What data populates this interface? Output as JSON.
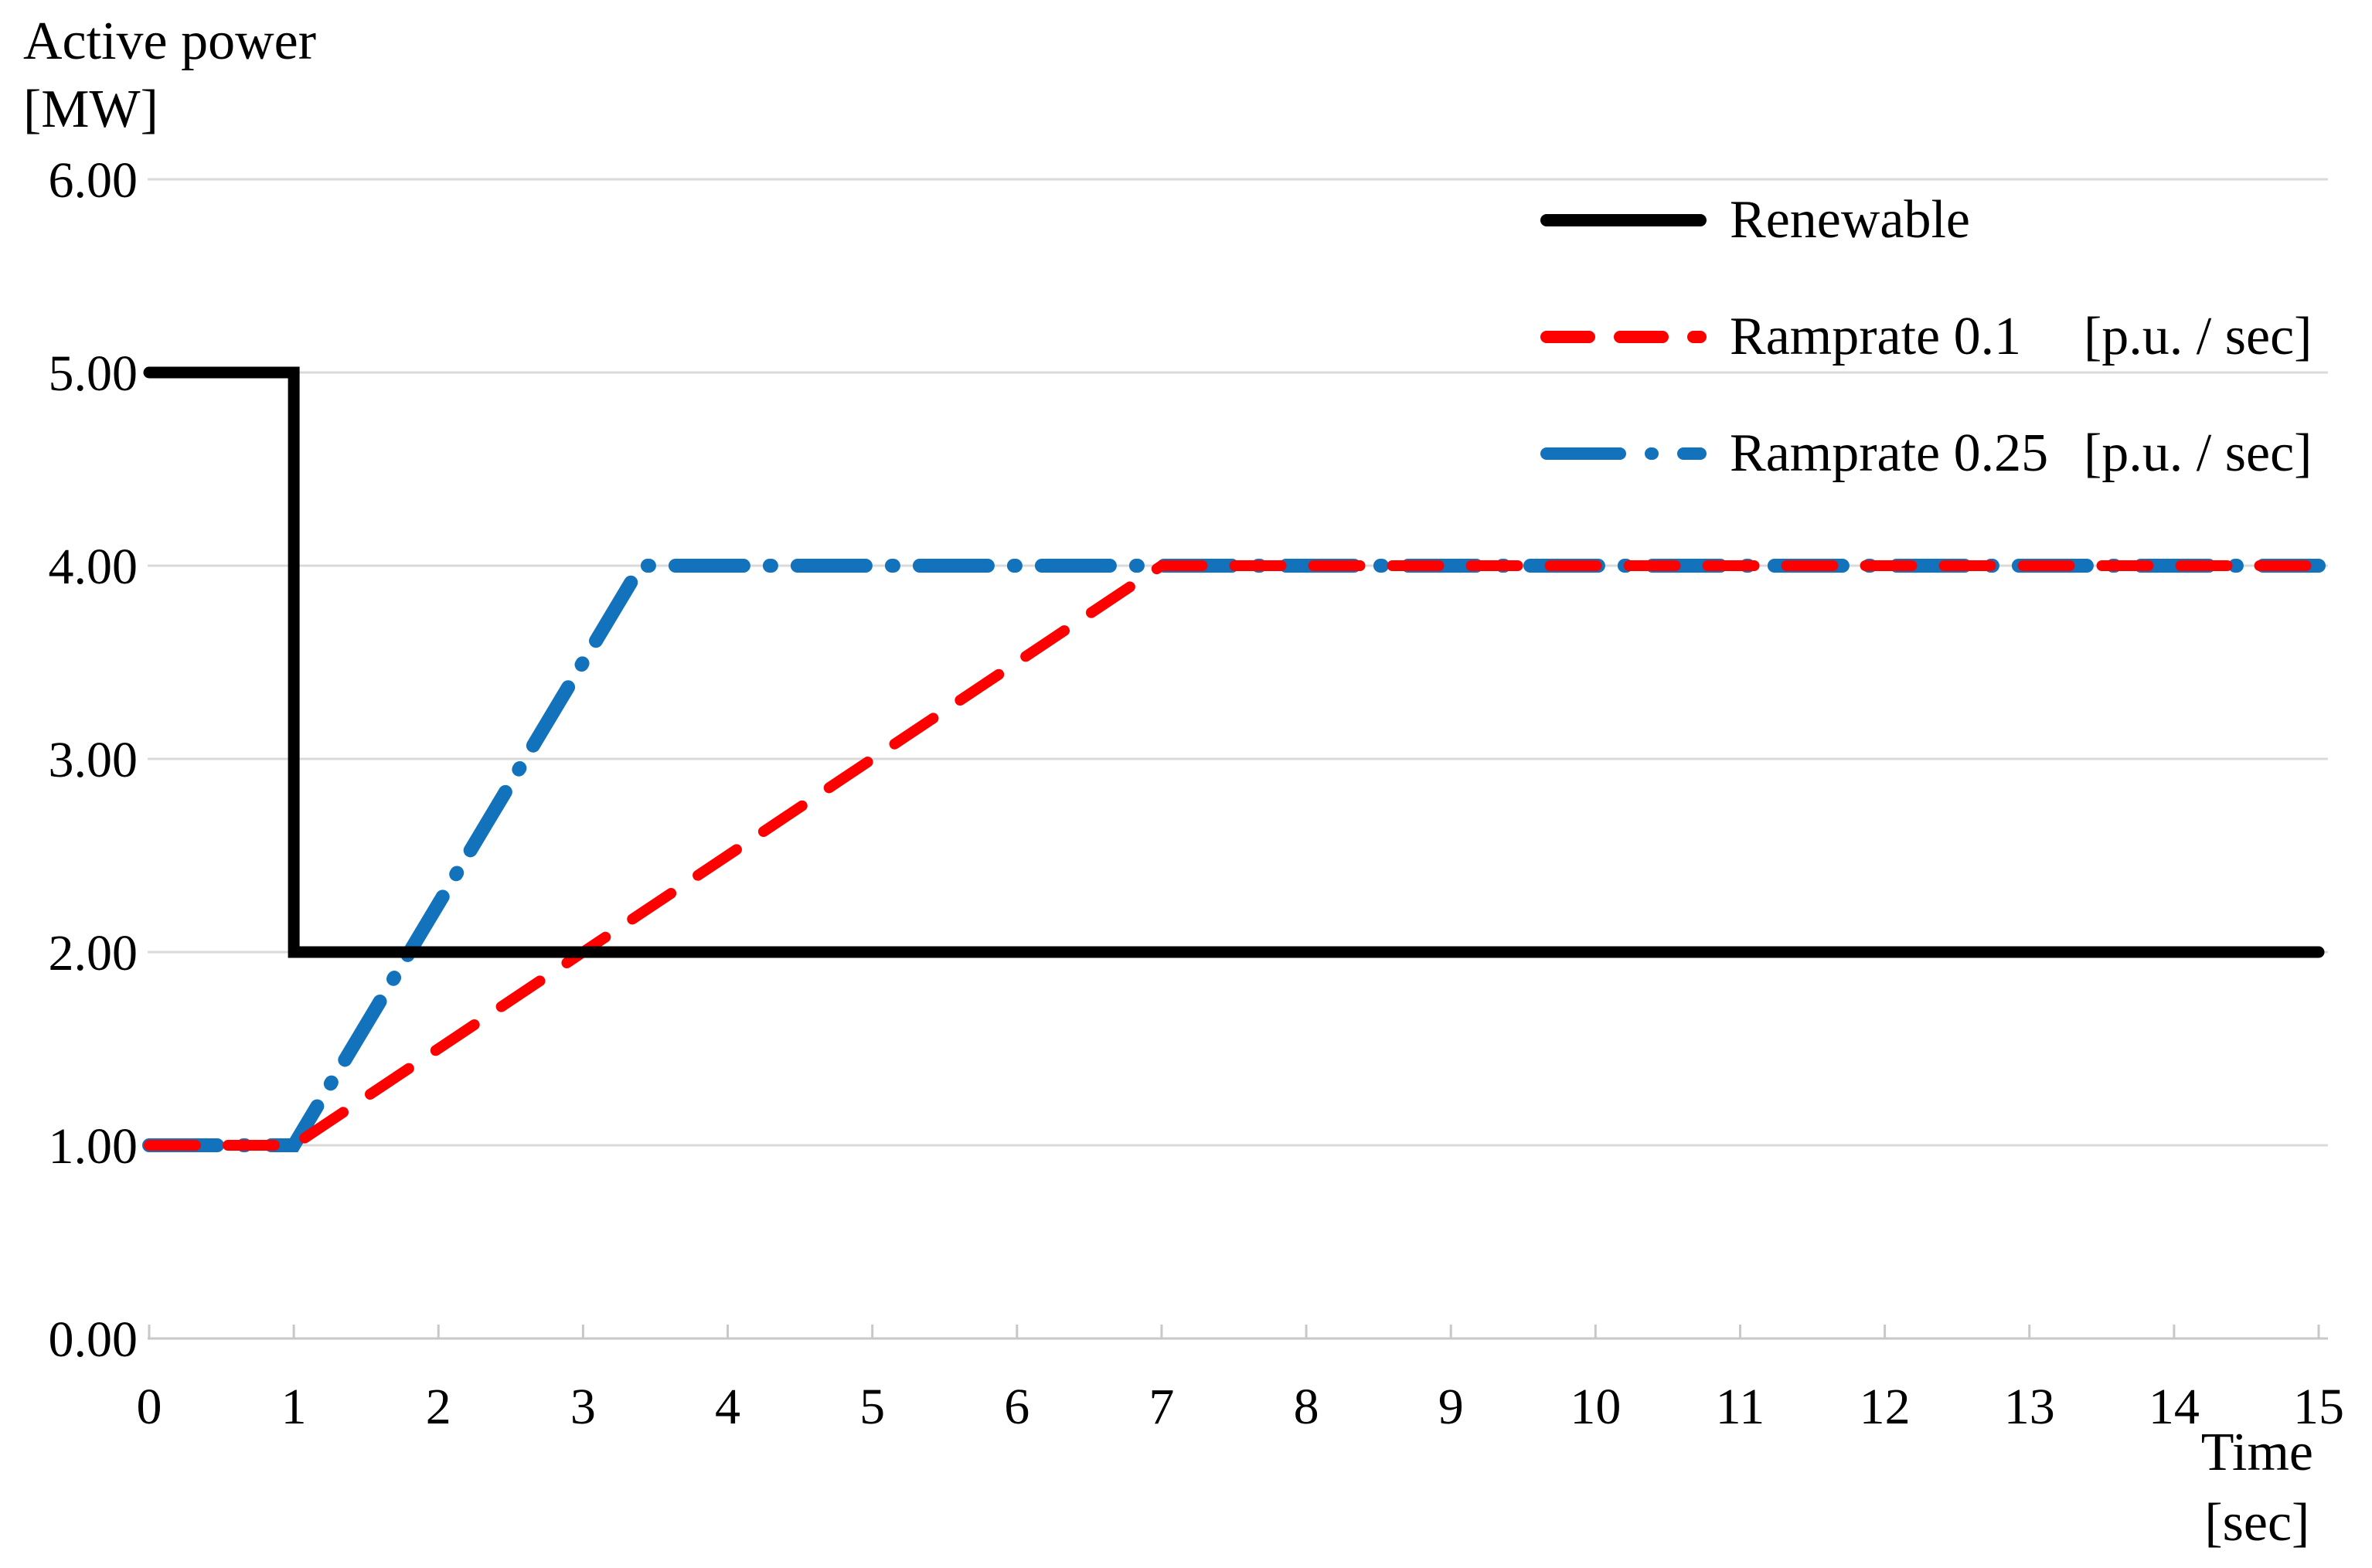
{
  "chart_data": {
    "type": "line",
    "title": "",
    "grid": "horizontal",
    "legend_position": "top-right-inside",
    "y_axis": {
      "title_lines": [
        "Active power",
        "[MW]"
      ],
      "min": 0,
      "max": 6,
      "tick_values": [
        0,
        1,
        2,
        3,
        4,
        5,
        6
      ],
      "tick_labels": [
        "0.00",
        "1.00",
        "2.00",
        "3.00",
        "4.00",
        "5.00",
        "6.00"
      ]
    },
    "x_axis": {
      "title_lines": [
        "Time",
        "[sec]"
      ],
      "min": 0,
      "max": 15,
      "tick_values": [
        0,
        1,
        2,
        3,
        4,
        5,
        6,
        7,
        8,
        9,
        10,
        11,
        12,
        13,
        14,
        15
      ],
      "tick_labels": [
        "0",
        "1",
        "2",
        "3",
        "4",
        "5",
        "6",
        "7",
        "8",
        "9",
        "10",
        "11",
        "12",
        "13",
        "14",
        "15"
      ]
    },
    "series": [
      {
        "name": "Renewable",
        "unit": "",
        "color": "#000000",
        "line_style": "solid",
        "points": [
          [
            0,
            5
          ],
          [
            1,
            5
          ],
          [
            1,
            2
          ],
          [
            15,
            2
          ]
        ]
      },
      {
        "name": "Ramprate 0.1",
        "unit": "[p.u. / sec]",
        "color": "#FF0000",
        "line_style": "dashed",
        "points": [
          [
            0,
            1
          ],
          [
            1,
            1
          ],
          [
            7,
            4
          ],
          [
            15,
            4
          ]
        ]
      },
      {
        "name": "Ramprate 0.25",
        "unit": "[p.u. / sec]",
        "color": "#1372BC",
        "line_style": "dash-dot",
        "points": [
          [
            0,
            1
          ],
          [
            1,
            1
          ],
          [
            3.4,
            4
          ],
          [
            15,
            4
          ]
        ]
      }
    ],
    "colors": {
      "background": "#FFFFFF",
      "gridline": "#DADADA",
      "axis": "#C8C8C8",
      "text": "#000000"
    }
  }
}
